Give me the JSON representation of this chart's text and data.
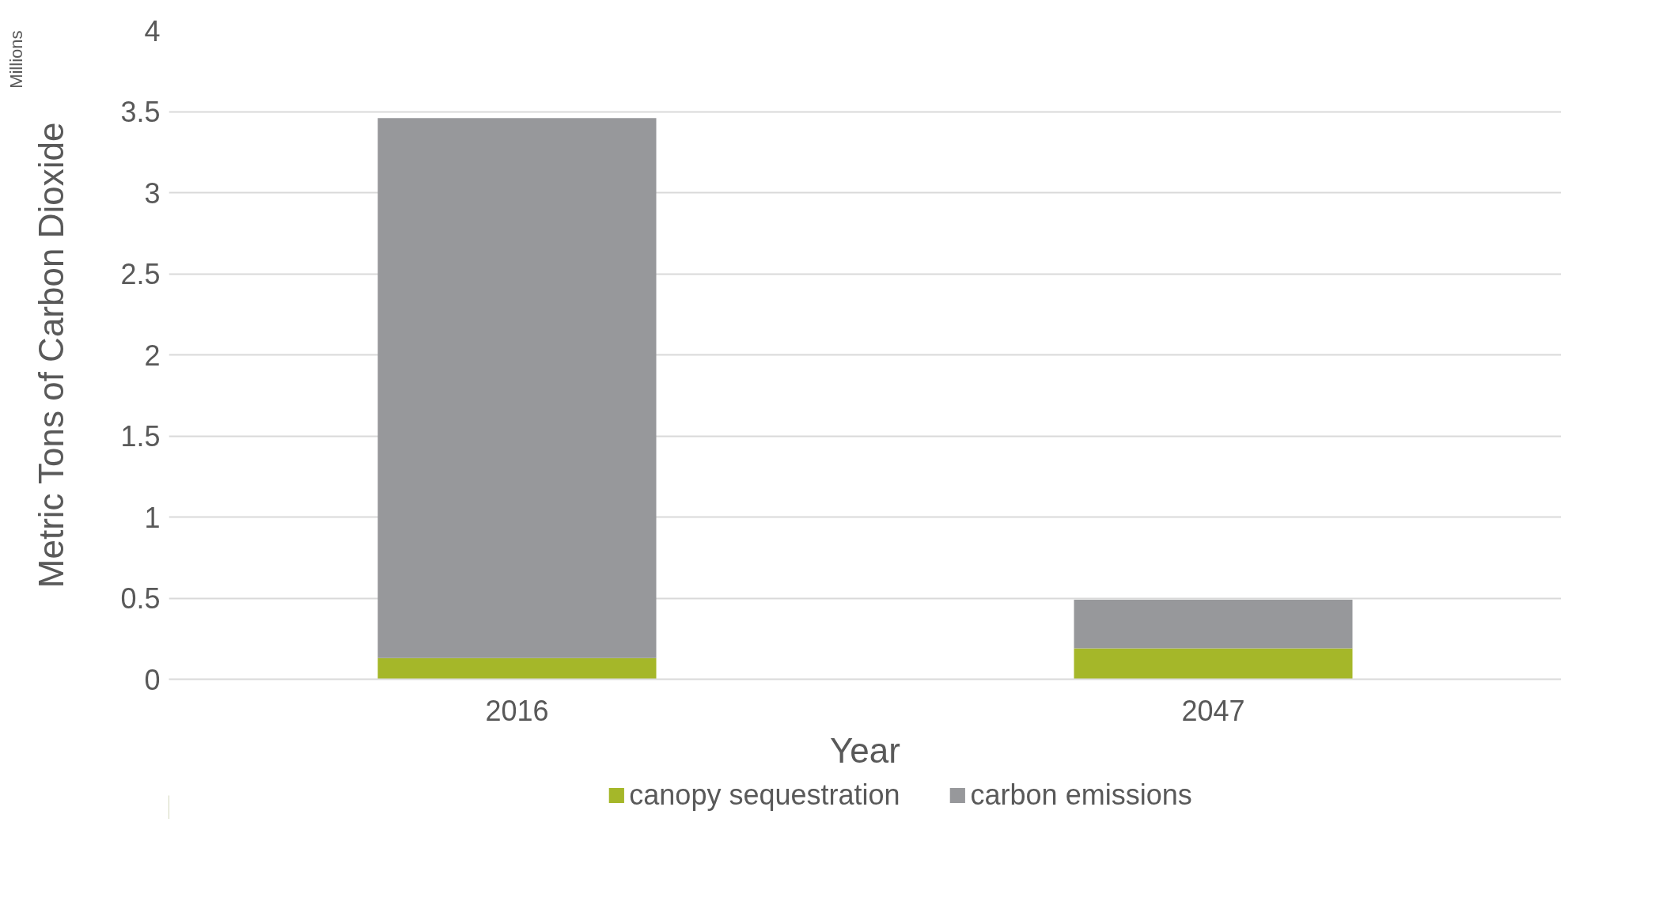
{
  "chart_data": {
    "type": "bar",
    "stacked": true,
    "xlabel": "Year",
    "ylabel": "Metric Tons of Carbon Dioxide",
    "annotations": [
      "Millions"
    ],
    "categories": [
      "2016",
      "2047"
    ],
    "series": [
      {
        "name": "canopy sequestration",
        "color": "#a5b729",
        "values": [
          0.13,
          0.19
        ]
      },
      {
        "name": "carbon emissions",
        "color": "#97989b",
        "values": [
          3.33,
          0.3
        ]
      }
    ],
    "ylim": [
      0,
      4
    ],
    "yticks": [
      0,
      0.5,
      1,
      1.5,
      2,
      2.5,
      3,
      3.5,
      4
    ],
    "grid": "y",
    "legend": "bottom"
  }
}
